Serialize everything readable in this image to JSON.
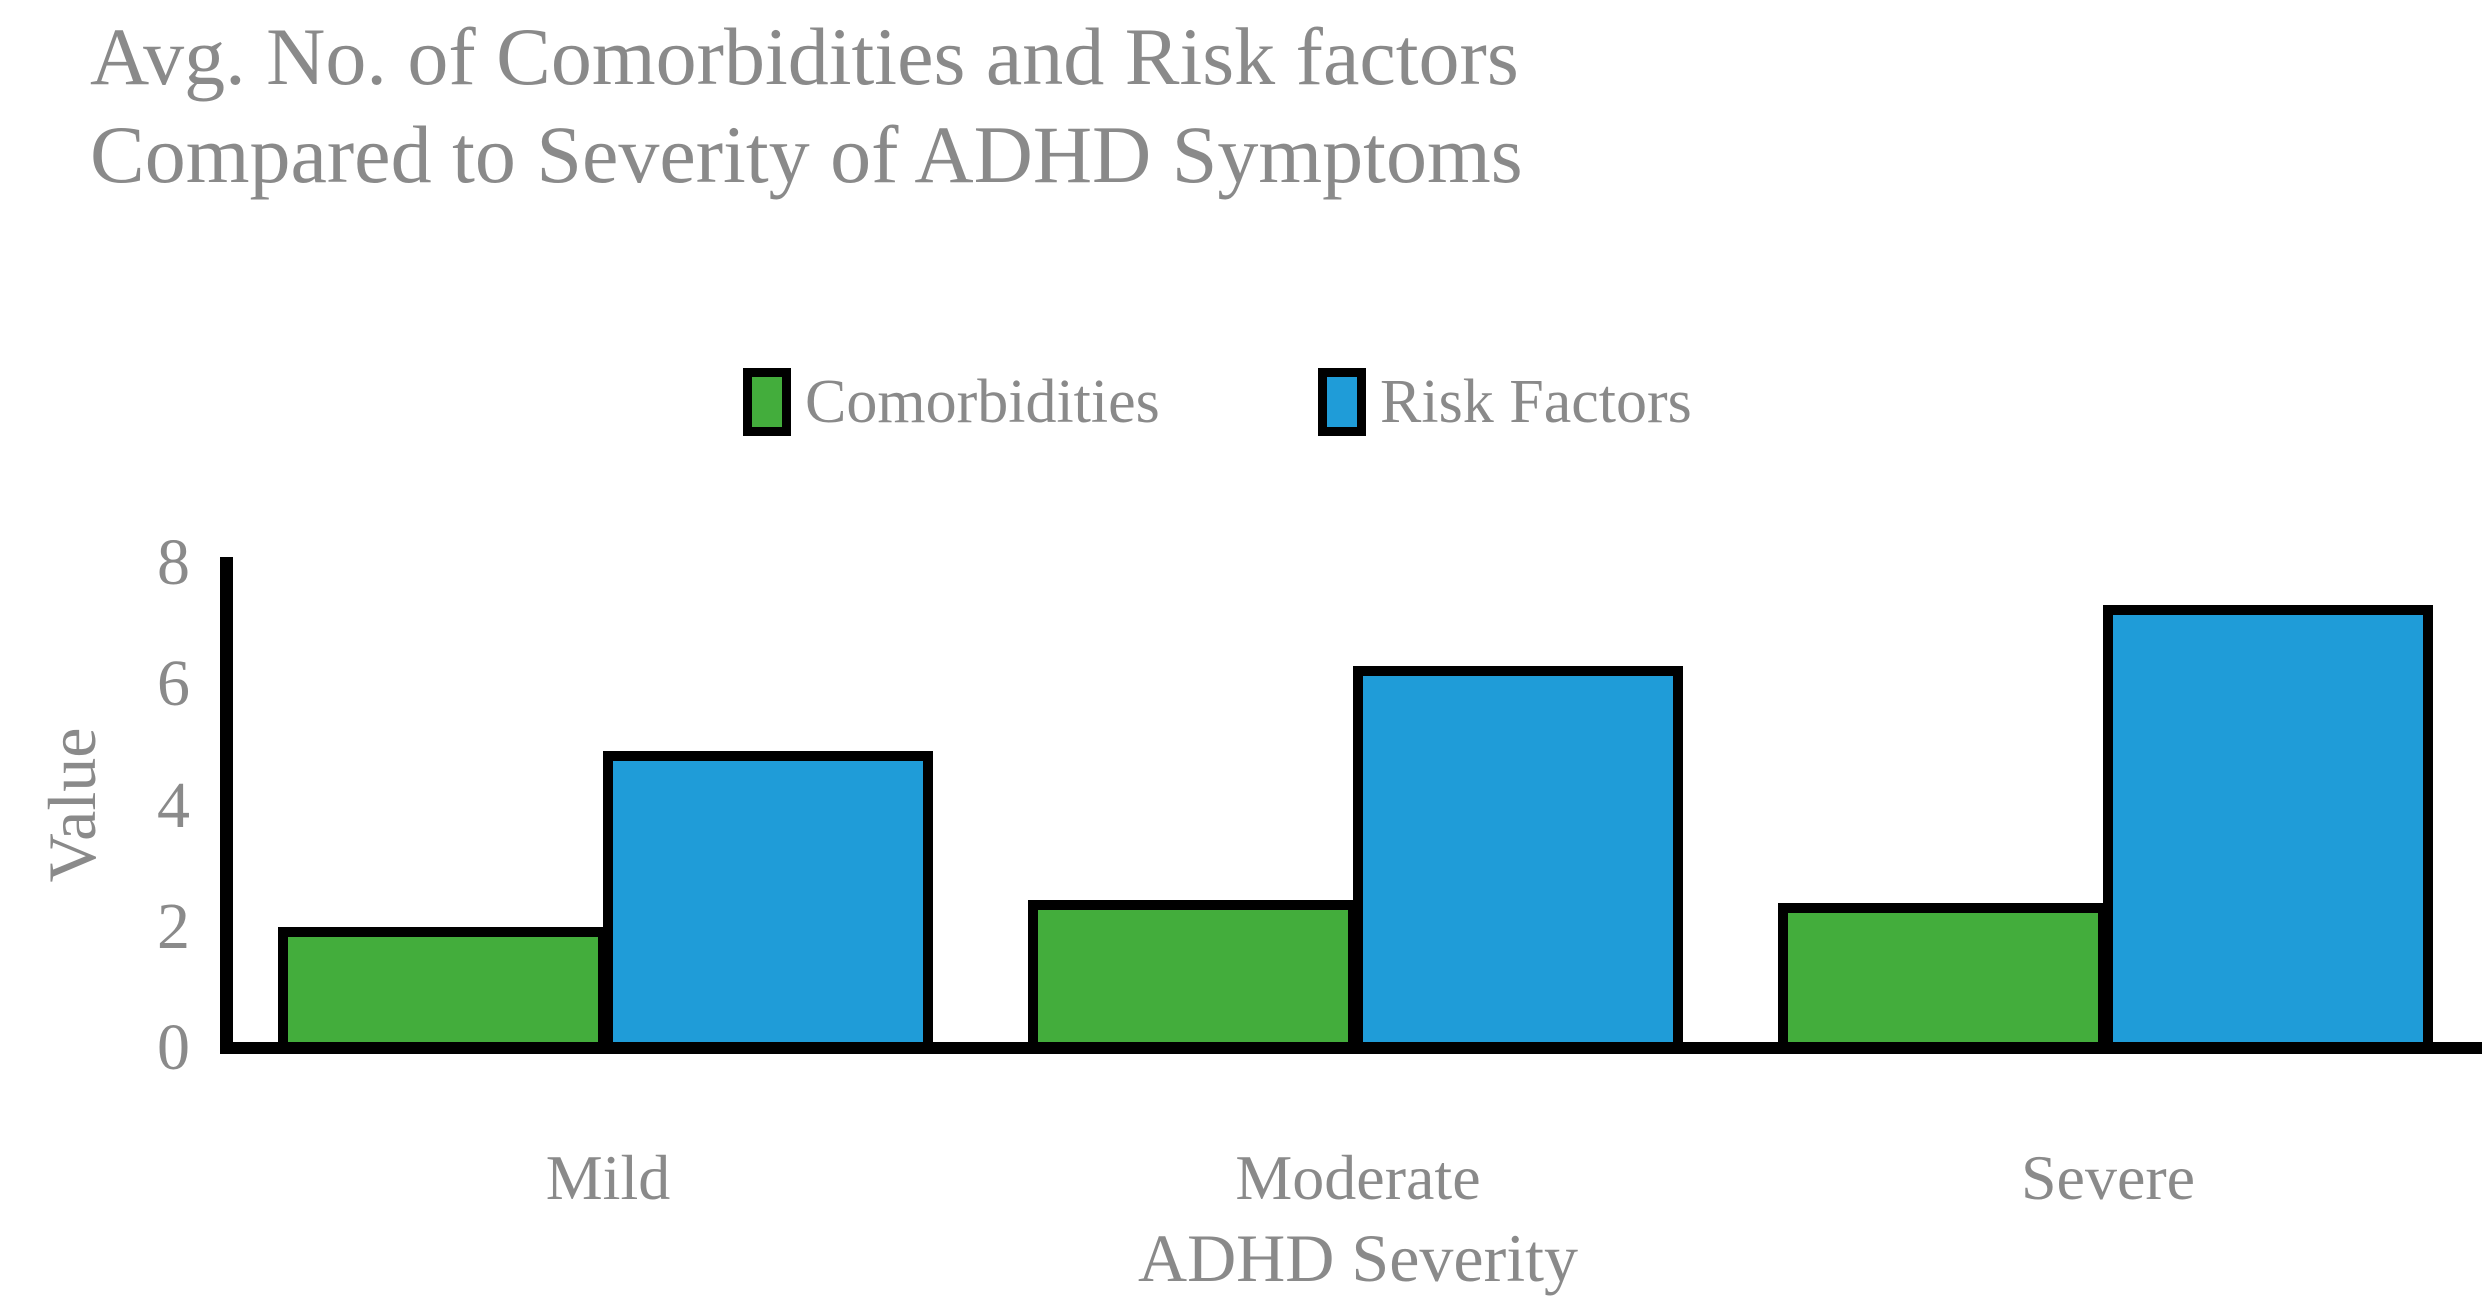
{
  "chart_data": {
    "type": "bar",
    "title_line1": "Avg. No. of Comorbidities and Risk factors",
    "title_line2": "Compared to Severity of ADHD Symptoms",
    "categories": [
      "Mild",
      "Moderate",
      "Severe"
    ],
    "series": [
      {
        "name": "Comorbidities",
        "color": "#43AD3C",
        "values": [
          1.9,
          2.35,
          2.3
        ]
      },
      {
        "name": "Risk Factors",
        "color": "#1F9CD8",
        "values": [
          4.8,
          6.2,
          7.2
        ]
      }
    ],
    "xlabel": "ADHD Severity",
    "ylabel": "Value",
    "ylim": [
      0,
      8
    ],
    "yticks": [
      0,
      2,
      4,
      6,
      8
    ],
    "grid": false,
    "legend_position": "top",
    "bar_border_color": "#000000",
    "axis_color": "#000000",
    "text_color": "#8a8a8a"
  }
}
